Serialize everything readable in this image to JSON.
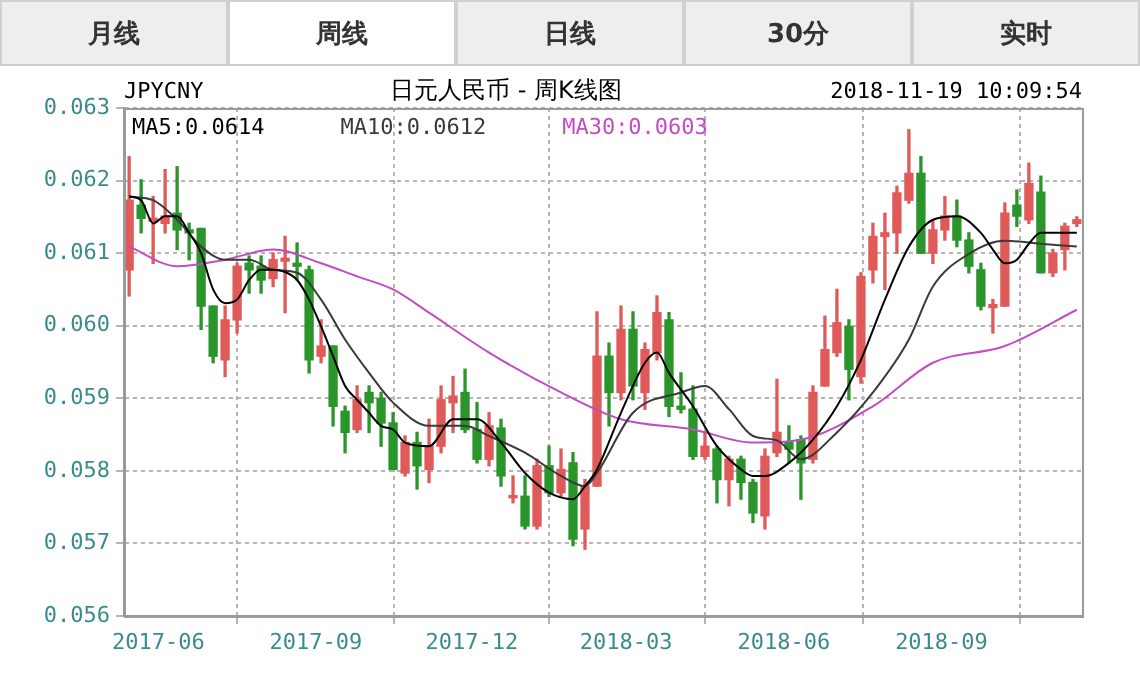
{
  "chart_data": {
    "type": "candlestick",
    "title": "日元人民币 - 周K线图",
    "annotations": [
      "月线",
      "周线",
      "日线",
      "30分",
      "实时",
      "JPYCNY",
      "2018-11-19 10:09:54"
    ],
    "x": [
      "2017-05-15",
      "2017-05-22",
      "2017-05-29",
      "2017-06-05",
      "2017-06-12",
      "2017-06-19",
      "2017-06-26",
      "2017-07-03",
      "2017-07-10",
      "2017-07-17",
      "2017-07-24",
      "2017-07-31",
      "2017-08-07",
      "2017-08-14",
      "2017-08-21",
      "2017-08-28",
      "2017-09-04",
      "2017-09-11",
      "2017-09-18",
      "2017-09-25",
      "2017-10-02",
      "2017-10-09",
      "2017-10-16",
      "2017-10-23",
      "2017-10-30",
      "2017-11-06",
      "2017-11-13",
      "2017-11-20",
      "2017-11-27",
      "2017-12-04",
      "2017-12-11",
      "2017-12-18",
      "2017-12-25",
      "2018-01-01",
      "2018-01-08",
      "2018-01-15",
      "2018-01-22",
      "2018-01-29",
      "2018-02-05",
      "2018-02-12",
      "2018-02-19",
      "2018-02-26",
      "2018-03-05",
      "2018-03-12",
      "2018-03-19",
      "2018-03-26",
      "2018-04-02",
      "2018-04-09",
      "2018-04-16",
      "2018-04-23",
      "2018-04-30",
      "2018-05-07",
      "2018-05-14",
      "2018-05-21",
      "2018-05-28",
      "2018-06-04",
      "2018-06-11",
      "2018-06-18",
      "2018-06-25",
      "2018-07-02",
      "2018-07-09",
      "2018-07-16",
      "2018-07-23",
      "2018-07-30",
      "2018-08-06",
      "2018-08-13",
      "2018-08-20",
      "2018-08-27",
      "2018-09-03",
      "2018-09-10",
      "2018-09-17",
      "2018-09-24",
      "2018-10-01",
      "2018-10-08",
      "2018-10-15",
      "2018-10-22",
      "2018-10-29",
      "2018-11-05",
      "2018-11-12",
      "2018-11-19"
    ],
    "ohlc": [
      [
        0.06077,
        0.06233,
        0.06041,
        0.06173
      ],
      [
        0.06166,
        0.06201,
        0.06128,
        0.06148
      ],
      [
        0.06144,
        0.06178,
        0.06086,
        0.06148
      ],
      [
        0.06141,
        0.06215,
        0.06128,
        0.06151
      ],
      [
        0.06155,
        0.06219,
        0.06105,
        0.06132
      ],
      [
        0.06132,
        0.06141,
        0.06091,
        0.06128
      ],
      [
        0.06134,
        0.06134,
        0.05995,
        0.06027
      ],
      [
        0.06027,
        0.06027,
        0.05949,
        0.05958
      ],
      [
        0.05953,
        0.06027,
        0.0593,
        0.06008
      ],
      [
        0.06008,
        0.06086,
        0.0599,
        0.06082
      ],
      [
        0.06086,
        0.06096,
        0.06045,
        0.06077
      ],
      [
        0.06082,
        0.06096,
        0.06045,
        0.06063
      ],
      [
        0.06065,
        0.061,
        0.06054,
        0.06091
      ],
      [
        0.06089,
        0.06123,
        0.06018,
        0.06093
      ],
      [
        0.06086,
        0.06114,
        0.06063,
        0.06082
      ],
      [
        0.06077,
        0.06082,
        0.05935,
        0.05953
      ],
      [
        0.05958,
        0.06008,
        0.05949,
        0.05972
      ],
      [
        0.05972,
        0.05972,
        0.05862,
        0.05889
      ],
      [
        0.05882,
        0.05889,
        0.05825,
        0.05853
      ],
      [
        0.05857,
        0.05917,
        0.05853,
        0.05898
      ],
      [
        0.05908,
        0.05917,
        0.05853,
        0.05894
      ],
      [
        0.059,
        0.05908,
        0.05834,
        0.05866
      ],
      [
        0.05866,
        0.0588,
        0.05802,
        0.05802
      ],
      [
        0.05797,
        0.05848,
        0.05793,
        0.05839
      ],
      [
        0.05839,
        0.05853,
        0.05775,
        0.05807
      ],
      [
        0.05802,
        0.05871,
        0.05784,
        0.05834
      ],
      [
        0.05834,
        0.05917,
        0.05825,
        0.05898
      ],
      [
        0.05894,
        0.0593,
        0.05853,
        0.05903
      ],
      [
        0.05908,
        0.0594,
        0.05853,
        0.05857
      ],
      [
        0.05857,
        0.05894,
        0.05811,
        0.05816
      ],
      [
        0.05816,
        0.0588,
        0.05807,
        0.05862
      ],
      [
        0.05859,
        0.05871,
        0.05779,
        0.05793
      ],
      [
        0.05763,
        0.05793,
        0.05756,
        0.05765
      ],
      [
        0.05765,
        0.05793,
        0.0572,
        0.05724
      ],
      [
        0.05724,
        0.05816,
        0.0572,
        0.05807
      ],
      [
        0.05807,
        0.05834,
        0.05765,
        0.0577
      ],
      [
        0.0577,
        0.0583,
        0.05765,
        0.05802
      ],
      [
        0.05811,
        0.05825,
        0.05697,
        0.05706
      ],
      [
        0.0572,
        0.05788,
        0.05692,
        0.05779
      ],
      [
        0.05779,
        0.06019,
        0.05779,
        0.05958
      ],
      [
        0.05958,
        0.05976,
        0.05862,
        0.05908
      ],
      [
        0.05908,
        0.06027,
        0.05898,
        0.05995
      ],
      [
        0.05995,
        0.06019,
        0.05898,
        0.05917
      ],
      [
        0.05908,
        0.05976,
        0.05885,
        0.05967
      ],
      [
        0.05963,
        0.06041,
        0.05953,
        0.06018
      ],
      [
        0.06008,
        0.06018,
        0.05875,
        0.05889
      ],
      [
        0.05889,
        0.05935,
        0.0588,
        0.05885
      ],
      [
        0.05885,
        0.05917,
        0.05816,
        0.0582
      ],
      [
        0.0582,
        0.05853,
        0.05816,
        0.05834
      ],
      [
        0.0583,
        0.05834,
        0.05756,
        0.05788
      ],
      [
        0.05788,
        0.0582,
        0.05752,
        0.05816
      ],
      [
        0.05816,
        0.0582,
        0.05761,
        0.05784
      ],
      [
        0.05784,
        0.05788,
        0.05729,
        0.05742
      ],
      [
        0.05738,
        0.0583,
        0.0572,
        0.0582
      ],
      [
        0.05825,
        0.05926,
        0.0582,
        0.05853
      ],
      [
        0.05839,
        0.05862,
        0.05811,
        0.0583
      ],
      [
        0.05843,
        0.05848,
        0.05761,
        0.05811
      ],
      [
        0.05816,
        0.05917,
        0.05811,
        0.05908
      ],
      [
        0.05917,
        0.06013,
        0.05917,
        0.05967
      ],
      [
        0.05963,
        0.0605,
        0.05958,
        0.06004
      ],
      [
        0.05999,
        0.06008,
        0.05898,
        0.0594
      ],
      [
        0.0593,
        0.06073,
        0.05921,
        0.06068
      ],
      [
        0.06077,
        0.06141,
        0.06059,
        0.06123
      ],
      [
        0.06123,
        0.06155,
        0.0605,
        0.06128
      ],
      [
        0.06128,
        0.06192,
        0.061,
        0.06183
      ],
      [
        0.06173,
        0.0627,
        0.06169,
        0.0621
      ],
      [
        0.0621,
        0.06233,
        0.061,
        0.061
      ],
      [
        0.061,
        0.06146,
        0.06086,
        0.06132
      ],
      [
        0.06132,
        0.06178,
        0.06118,
        0.06151
      ],
      [
        0.06151,
        0.06173,
        0.06109,
        0.06118
      ],
      [
        0.06118,
        0.06128,
        0.06073,
        0.06082
      ],
      [
        0.06077,
        0.06086,
        0.06022,
        0.06027
      ],
      [
        0.06025,
        0.06036,
        0.0599,
        0.06029
      ],
      [
        0.06027,
        0.06169,
        0.06027,
        0.06155
      ],
      [
        0.06166,
        0.06187,
        0.06137,
        0.06151
      ],
      [
        0.06146,
        0.06224,
        0.06141,
        0.06196
      ],
      [
        0.06184,
        0.06206,
        0.06073,
        0.06073
      ],
      [
        0.06073,
        0.06105,
        0.06068,
        0.061
      ],
      [
        0.06105,
        0.06141,
        0.06077,
        0.06137
      ],
      [
        0.06141,
        0.0615,
        0.06137,
        0.06146
      ]
    ],
    "colors": [
      "#e05a5a",
      "#2a952a",
      "#e05a5a",
      "#e05a5a",
      "#2a952a",
      "#2a952a",
      "#2a952a",
      "#2a952a",
      "#e05a5a",
      "#e05a5a",
      "#2a952a",
      "#2a952a",
      "#e05a5a",
      "#e05a5a",
      "#2a952a",
      "#2a952a",
      "#e05a5a",
      "#2a952a",
      "#2a952a",
      "#e05a5a",
      "#2a952a",
      "#2a952a",
      "#2a952a",
      "#e05a5a",
      "#2a952a",
      "#e05a5a",
      "#e05a5a",
      "#e05a5a",
      "#2a952a",
      "#2a952a",
      "#e05a5a",
      "#2a952a",
      "#e05a5a",
      "#2a952a",
      "#e05a5a",
      "#2a952a",
      "#e05a5a",
      "#2a952a",
      "#e05a5a",
      "#e05a5a",
      "#2a952a",
      "#e05a5a",
      "#2a952a",
      "#e05a5a",
      "#e05a5a",
      "#2a952a",
      "#2a952a",
      "#2a952a",
      "#e05a5a",
      "#2a952a",
      "#e05a5a",
      "#2a952a",
      "#2a952a",
      "#e05a5a",
      "#e05a5a",
      "#2a952a",
      "#2a952a",
      "#e05a5a",
      "#e05a5a",
      "#e05a5a",
      "#2a952a",
      "#e05a5a",
      "#e05a5a",
      "#e05a5a",
      "#e05a5a",
      "#e05a5a",
      "#2a952a",
      "#e05a5a",
      "#e05a5a",
      "#2a952a",
      "#2a952a",
      "#2a952a",
      "#e05a5a",
      "#e05a5a",
      "#2a952a",
      "#e05a5a",
      "#2a952a",
      "#e05a5a",
      "#e05a5a",
      "#e05a5a"
    ],
    "series": [
      {
        "type": "line",
        "name": "MA5:0.0614",
        "color": "#000000",
        "x": [
          "2017-05-15",
          "2017-05-22",
          "2017-05-29",
          "2017-06-05",
          "2017-06-12",
          "2017-06-19",
          "2017-06-26",
          "2017-07-03",
          "2017-07-10",
          "2017-07-17",
          "2017-07-24",
          "2017-07-31",
          "2017-08-07",
          "2017-08-14",
          "2017-08-21",
          "2017-08-28",
          "2017-09-04",
          "2017-09-11",
          "2017-09-18",
          "2017-09-25",
          "2017-10-02",
          "2017-10-09",
          "2017-10-16",
          "2017-10-23",
          "2017-11-06",
          "2017-11-20",
          "2017-12-04",
          "2017-12-18",
          "2018-01-01",
          "2018-01-15",
          "2018-01-29",
          "2018-02-05",
          "2018-02-12",
          "2018-02-26",
          "2018-03-12",
          "2018-03-19",
          "2018-03-26",
          "2018-04-09",
          "2018-04-23",
          "2018-05-07",
          "2018-05-14",
          "2018-05-21",
          "2018-06-04",
          "2018-06-18",
          "2018-07-02",
          "2018-07-16",
          "2018-07-30",
          "2018-08-13",
          "2018-08-27",
          "2018-09-10",
          "2018-09-24",
          "2018-10-01",
          "2018-10-08",
          "2018-10-15",
          "2018-10-22",
          "2018-10-29",
          "2018-11-05",
          "2018-11-19"
        ],
        "values": [
          0.06178,
          0.06173,
          0.06141,
          0.06151,
          0.06151,
          0.06128,
          0.061,
          0.0605,
          0.06031,
          0.06036,
          0.06063,
          0.06077,
          0.06077,
          0.06074,
          0.06063,
          0.06036,
          0.05999,
          0.05958,
          0.05917,
          0.05898,
          0.0588,
          0.05862,
          0.05857,
          0.05839,
          0.05834,
          0.05871,
          0.05871,
          0.05839,
          0.05797,
          0.0577,
          0.05761,
          0.05779,
          0.05802,
          0.0588,
          0.05949,
          0.05963,
          0.05935,
          0.05889,
          0.05834,
          0.05802,
          0.05793,
          0.05793,
          0.05811,
          0.05843,
          0.05889,
          0.05953,
          0.06036,
          0.06109,
          0.06146,
          0.06151,
          0.06128,
          0.06105,
          0.06086,
          0.06091,
          0.06113,
          0.06128,
          0.06128,
          0.06128
        ]
      },
      {
        "type": "line",
        "name": "MA10:0.0612",
        "color": "#3a3a3a",
        "x": [
          "2017-05-15",
          "2017-05-29",
          "2017-06-12",
          "2017-06-26",
          "2017-07-10",
          "2017-07-24",
          "2017-08-07",
          "2017-08-21",
          "2017-09-04",
          "2017-09-18",
          "2017-10-02",
          "2017-10-16",
          "2017-11-06",
          "2017-11-27",
          "2017-12-11",
          "2018-01-01",
          "2018-01-22",
          "2018-02-05",
          "2018-02-12",
          "2018-03-05",
          "2018-04-02",
          "2018-04-16",
          "2018-04-30",
          "2018-05-14",
          "2018-05-28",
          "2018-06-11",
          "2018-07-02",
          "2018-07-23",
          "2018-08-13",
          "2018-08-27",
          "2018-09-17",
          "2018-10-08",
          "2018-10-29",
          "2018-11-19"
        ],
        "values": [
          0.06178,
          0.06173,
          0.06146,
          0.06109,
          0.06091,
          0.06091,
          0.06077,
          0.06073,
          0.06036,
          0.05981,
          0.05935,
          0.05894,
          0.05862,
          0.05862,
          0.05848,
          0.05825,
          0.05793,
          0.05779,
          0.05797,
          0.0588,
          0.05908,
          0.05917,
          0.05885,
          0.05848,
          0.05842,
          0.05816,
          0.05853,
          0.05908,
          0.05981,
          0.06054,
          0.06099,
          0.06117,
          0.06113,
          0.06109
        ]
      },
      {
        "type": "line",
        "name": "MA30:0.0603",
        "color": "#c34cc3",
        "x": [
          "2017-05-15",
          "2017-06-12",
          "2017-07-10",
          "2017-08-07",
          "2017-09-04",
          "2017-09-25",
          "2017-10-16",
          "2017-11-06",
          "2017-12-11",
          "2018-01-22",
          "2018-02-26",
          "2018-04-09",
          "2018-05-14",
          "2018-06-11",
          "2018-07-23",
          "2018-08-27",
          "2018-10-08",
          "2018-11-19"
        ],
        "values": [
          0.06109,
          0.06082,
          0.06091,
          0.06105,
          0.06086,
          0.06068,
          0.0605,
          0.06018,
          0.05963,
          0.05908,
          0.05871,
          0.05857,
          0.05839,
          0.05843,
          0.05889,
          0.05949,
          0.05972,
          0.06022
        ]
      }
    ],
    "xlim": [
      "2017-05-12",
      "2018-11-22"
    ],
    "xticks": [
      "2017-06",
      "2017-09",
      "2017-12",
      "2018-03",
      "2018-06",
      "2018-09"
    ],
    "ylim": [
      0.056,
      0.063
    ],
    "yticks": [
      0.056,
      0.057,
      0.058,
      0.059,
      {
        "value": 0.06,
        "label": "0.060"
      },
      0.061,
      0.062,
      0.063
    ],
    "grid": true,
    "legend": "top left",
    "marker": "none"
  }
}
